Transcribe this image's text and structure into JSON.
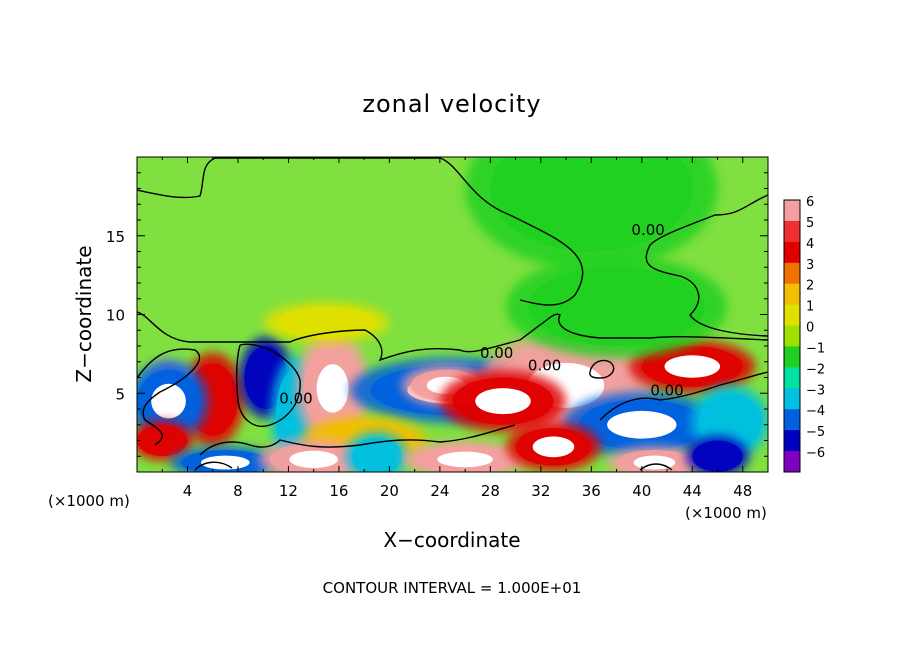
{
  "chart_data": {
    "type": "heatmap",
    "title": "zonal velocity",
    "xlabel": "X−coordinate",
    "ylabel": "Z−coordinate",
    "x_unit_label_left": "(×1000 m)",
    "x_unit_label_right": "(×1000 m)",
    "footer": "CONTOUR INTERVAL = 1.000E+01",
    "xlim": [
      0,
      50
    ],
    "ylim": [
      0,
      20
    ],
    "x_ticks": [
      4,
      8,
      12,
      16,
      20,
      24,
      28,
      32,
      36,
      40,
      44,
      48
    ],
    "x_tick_labels": [
      "4",
      "8",
      "12",
      "16",
      "20",
      "24",
      "28",
      "32",
      "36",
      "40",
      "44",
      "48"
    ],
    "y_ticks": [
      5,
      10,
      15
    ],
    "y_tick_labels": [
      "5",
      "10",
      "15"
    ],
    "colorbar": {
      "levels": [
        6,
        5,
        4,
        3,
        2,
        1,
        0,
        -1,
        -2,
        -3,
        -4,
        -5,
        -6
      ],
      "labels": [
        "6",
        "5",
        "4",
        "3",
        "2",
        "1",
        "0",
        "−1",
        "−2",
        "−3",
        "−4",
        "−5",
        "−6"
      ],
      "colors": [
        "#f4a0a0",
        "#f03030",
        "#e00000",
        "#f07000",
        "#f0c000",
        "#e0e000",
        "#a0e000",
        "#20d020",
        "#00e0a0",
        "#00c0e0",
        "#0060e0",
        "#0000c0",
        "#8000c0"
      ]
    },
    "contour_labels": [
      {
        "text": "0.00",
        "x": 40.5,
        "z": 15.3
      },
      {
        "text": "0.00",
        "x": 28.5,
        "z": 7.5
      },
      {
        "text": "0.00",
        "x": 32.3,
        "z": 6.7
      },
      {
        "text": "0.00",
        "x": 42,
        "z": 5.1
      },
      {
        "text": "0.00",
        "x": 12.6,
        "z": 4.6
      }
    ],
    "blobs": [
      {
        "x": 6,
        "z": 4.6,
        "rx": 2.0,
        "rz": 2.3,
        "v": 4
      },
      {
        "x": 2.5,
        "z": 5.5,
        "rx": 1.5,
        "rz": 1.2,
        "v": 6
      },
      {
        "x": 2.5,
        "z": 4.5,
        "rx": 2.5,
        "rz": 2.0,
        "v": -4
      },
      {
        "x": 10.2,
        "z": 6.0,
        "rx": 1.7,
        "rz": 2.0,
        "v": -5
      },
      {
        "x": 12.5,
        "z": 3.5,
        "rx": 1.5,
        "rz": 3.0,
        "v": -3
      },
      {
        "x": 15.5,
        "z": 5.3,
        "rx": 2.3,
        "rz": 2.8,
        "v": 6
      },
      {
        "x": 25,
        "z": 5.2,
        "rx": 6.5,
        "rz": 1.6,
        "v": -4
      },
      {
        "x": 24.5,
        "z": 5.5,
        "rx": 2.8,
        "rz": 1.0,
        "v": 6
      },
      {
        "x": 34,
        "z": 5.5,
        "rx": 5.5,
        "rz": 2.6,
        "v": 6
      },
      {
        "x": 29,
        "z": 4.5,
        "rx": 4.0,
        "rz": 1.5,
        "v": 4
      },
      {
        "x": 44,
        "z": 6.7,
        "rx": 4.0,
        "rz": 1.3,
        "v": 4
      },
      {
        "x": 40,
        "z": 3.0,
        "rx": 5.0,
        "rz": 1.6,
        "v": -4
      },
      {
        "x": 47,
        "z": 3.2,
        "rx": 2.5,
        "rz": 1.8,
        "v": -3
      },
      {
        "x": 18,
        "z": 2.0,
        "rx": 4.0,
        "rz": 1.2,
        "v": 2
      },
      {
        "x": 2,
        "z": 2.0,
        "rx": 2.0,
        "rz": 1.0,
        "v": 4
      },
      {
        "x": 7,
        "z": 0.6,
        "rx": 3.5,
        "rz": 0.8,
        "v": -4
      },
      {
        "x": 14,
        "z": 0.8,
        "rx": 3.5,
        "rz": 1.0,
        "v": 6
      },
      {
        "x": 19,
        "z": 1.0,
        "rx": 2.0,
        "rz": 1.2,
        "v": -3
      },
      {
        "x": 26,
        "z": 0.8,
        "rx": 4.0,
        "rz": 0.9,
        "v": 6
      },
      {
        "x": 33,
        "z": 1.6,
        "rx": 3.0,
        "rz": 1.2,
        "v": 4
      },
      {
        "x": 41,
        "z": 0.6,
        "rx": 3.0,
        "rz": 0.8,
        "v": 6
      },
      {
        "x": 46,
        "z": 1.0,
        "rx": 2.0,
        "rz": 1.0,
        "v": -5
      },
      {
        "x": 36,
        "z": 18.0,
        "rx": 8.0,
        "rz": 4.0,
        "v": -1
      },
      {
        "x": 38,
        "z": 10.5,
        "rx": 7.0,
        "rz": 2.5,
        "v": -1
      },
      {
        "x": 15,
        "z": 9.5,
        "rx": 4.0,
        "rz": 1.0,
        "v": 1
      }
    ]
  }
}
